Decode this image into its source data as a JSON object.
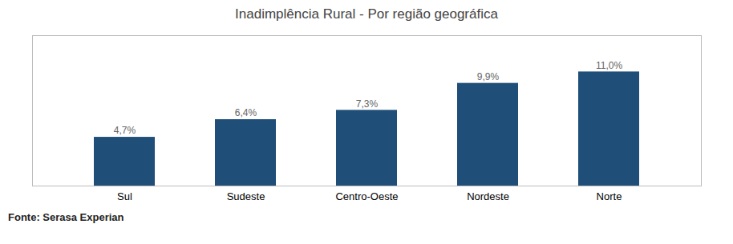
{
  "chart_data": {
    "type": "bar",
    "title": "Inadimplência Rural - Por região geográfica",
    "caption": "Fonte: Serasa Experian",
    "categories": [
      "Sul",
      "Sudeste",
      "Centro-Oeste",
      "Nordeste",
      "Norte"
    ],
    "values": [
      4.7,
      6.4,
      7.3,
      9.9,
      11.0
    ],
    "value_labels": [
      "4,7%",
      "6,4%",
      "7,3%",
      "9,9%",
      "11,0%"
    ],
    "color": "#1F4E79",
    "ylim": [
      0,
      14.5
    ],
    "data_labels": true,
    "tick_labels": "x",
    "grid": false
  }
}
